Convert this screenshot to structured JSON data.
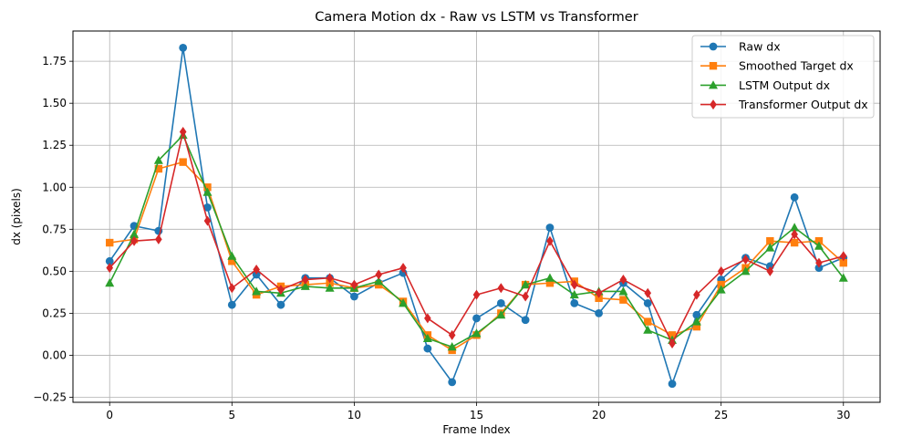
{
  "chart_data": {
    "type": "line",
    "title": "Camera Motion dx - Raw vs LSTM vs Transformer",
    "xlabel": "Frame Index",
    "ylabel": "dx (pixels)",
    "xlim": [
      -1.5,
      31.5
    ],
    "ylim": [
      -0.28,
      1.93
    ],
    "xticks": [
      0,
      5,
      10,
      15,
      20,
      25,
      30
    ],
    "xtick_labels": [
      "0",
      "5",
      "10",
      "15",
      "20",
      "25",
      "30"
    ],
    "yticks": [
      -0.25,
      0.0,
      0.25,
      0.5,
      0.75,
      1.0,
      1.25,
      1.5,
      1.75
    ],
    "ytick_labels": [
      "−0.25",
      "0.00",
      "0.25",
      "0.50",
      "0.75",
      "1.00",
      "1.25",
      "1.50",
      "1.75"
    ],
    "grid": true,
    "legend_position": "top-right",
    "x": [
      0,
      1,
      2,
      3,
      4,
      5,
      6,
      7,
      8,
      9,
      10,
      11,
      12,
      13,
      14,
      15,
      16,
      17,
      18,
      19,
      20,
      21,
      22,
      23,
      24,
      25,
      26,
      27,
      28,
      29,
      30
    ],
    "series": [
      {
        "name": "Raw dx",
        "color": "#1f77b4",
        "marker": "circle",
        "values": [
          0.56,
          0.77,
          0.74,
          1.83,
          0.88,
          0.3,
          0.48,
          0.3,
          0.46,
          0.46,
          0.35,
          0.43,
          0.49,
          0.04,
          -0.16,
          0.22,
          0.31,
          0.21,
          0.76,
          0.31,
          0.25,
          0.43,
          0.31,
          -0.17,
          0.24,
          0.45,
          0.58,
          0.53,
          0.94,
          0.52,
          0.58
        ]
      },
      {
        "name": "Smoothed Target dx",
        "color": "#ff7f0e",
        "marker": "square",
        "values": [
          0.67,
          0.69,
          1.11,
          1.15,
          1.0,
          0.56,
          0.36,
          0.41,
          0.42,
          0.43,
          0.4,
          0.42,
          0.32,
          0.12,
          0.03,
          0.12,
          0.25,
          0.42,
          0.43,
          0.44,
          0.34,
          0.33,
          0.2,
          0.12,
          0.17,
          0.42,
          0.52,
          0.68,
          0.67,
          0.68,
          0.55
        ]
      },
      {
        "name": "LSTM Output dx",
        "color": "#2ca02c",
        "marker": "triangle",
        "values": [
          0.43,
          0.72,
          1.16,
          1.31,
          0.97,
          0.59,
          0.38,
          0.37,
          0.41,
          0.4,
          0.4,
          0.44,
          0.31,
          0.1,
          0.05,
          0.13,
          0.24,
          0.42,
          0.46,
          0.36,
          0.38,
          0.38,
          0.15,
          0.09,
          0.2,
          0.39,
          0.5,
          0.64,
          0.76,
          0.65,
          0.46
        ]
      },
      {
        "name": "Transformer Output dx",
        "color": "#d62728",
        "marker": "diamond",
        "values": [
          0.52,
          0.68,
          0.69,
          1.33,
          0.8,
          0.4,
          0.51,
          0.39,
          0.45,
          0.46,
          0.42,
          0.48,
          0.52,
          0.22,
          0.12,
          0.36,
          0.4,
          0.35,
          0.68,
          0.42,
          0.37,
          0.45,
          0.37,
          0.07,
          0.36,
          0.5,
          0.57,
          0.5,
          0.72,
          0.55,
          0.59
        ]
      }
    ]
  }
}
